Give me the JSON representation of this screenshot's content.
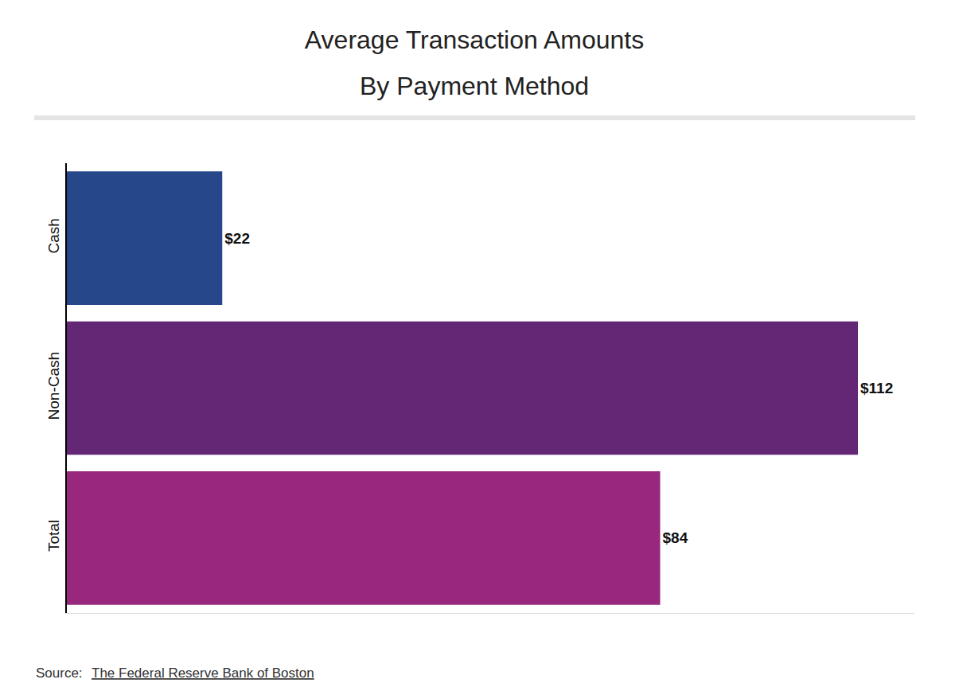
{
  "chart_data": {
    "type": "bar",
    "orientation": "horizontal",
    "title": "Average Transaction Amounts",
    "subtitle": "By Payment Method",
    "annotations": [
      "Source:",
      "The Federal Reserve Bank of Boston"
    ],
    "categories": [
      "Cash",
      "Non-Cash",
      "Total"
    ],
    "values": [
      22,
      112,
      84
    ],
    "value_labels": [
      "$22",
      "$112",
      "$84"
    ],
    "colors": [
      "#26488b",
      "#642776",
      "#98277e"
    ],
    "data_labels": true,
    "xlim": [
      0,
      120
    ],
    "tick_labels": "y",
    "grid": false
  }
}
